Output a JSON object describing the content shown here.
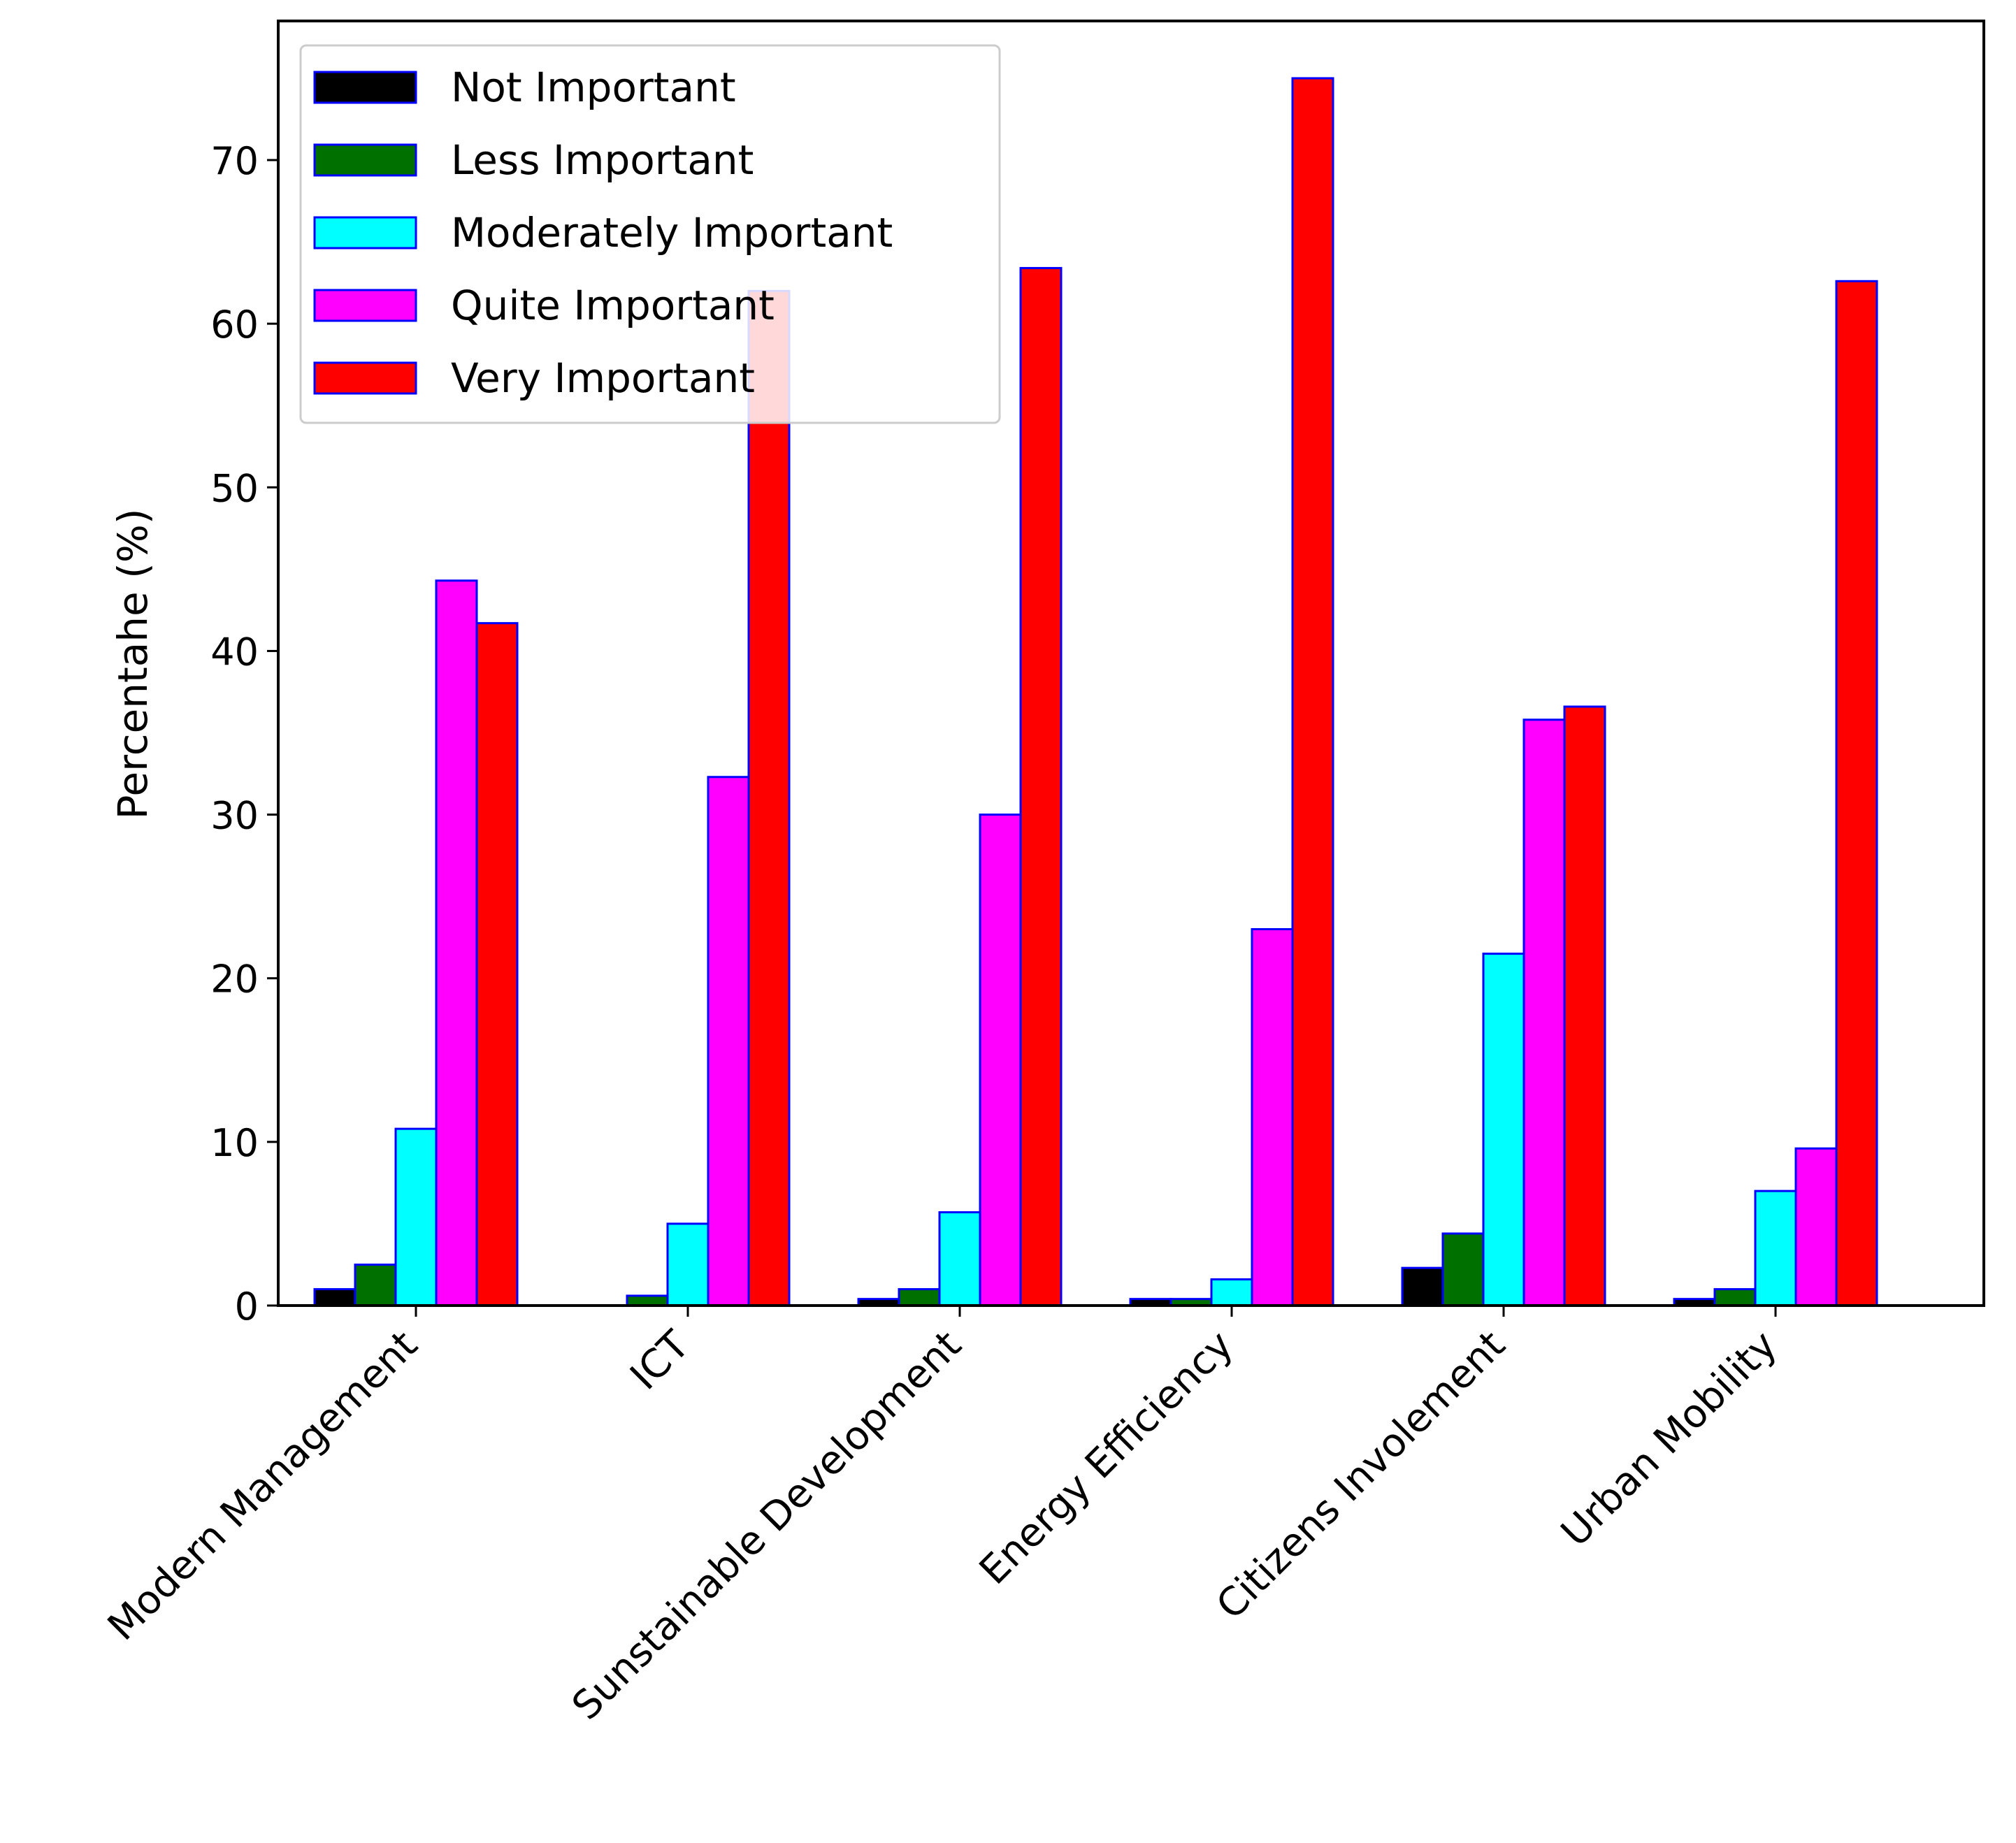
{
  "chart_data": {
    "type": "bar",
    "title": "",
    "xlabel": "",
    "ylabel": "Percentahe (%)",
    "ylim": [
      0,
      78.5
    ],
    "yticks": [
      0,
      10,
      20,
      30,
      40,
      50,
      60,
      70
    ],
    "grid": false,
    "legend_position": "top-left",
    "categories": [
      "Modern Management",
      "ICT",
      "Sunstainable Development",
      "Energy Efficiency",
      "Citizens Involement",
      "Urban Mobility"
    ],
    "series": [
      {
        "name": "Not Important",
        "color": "#000000",
        "values": [
          1.0,
          0.0,
          0.4,
          0.4,
          2.3,
          0.4
        ]
      },
      {
        "name": "Less Important",
        "color": "#007000",
        "values": [
          2.5,
          0.6,
          1.0,
          0.4,
          4.4,
          1.0
        ]
      },
      {
        "name": "Moderately Important",
        "color": "#00ffff",
        "values": [
          10.8,
          5.0,
          5.7,
          1.6,
          21.5,
          7.0
        ]
      },
      {
        "name": "Quite Important",
        "color": "#ff00ff",
        "values": [
          44.3,
          32.3,
          30.0,
          23.0,
          35.8,
          9.6
        ]
      },
      {
        "name": "Very Important",
        "color": "#ff0000",
        "values": [
          41.7,
          62.0,
          63.4,
          75.0,
          36.6,
          62.6
        ]
      }
    ],
    "bar_edge_color": "#0000ff"
  }
}
